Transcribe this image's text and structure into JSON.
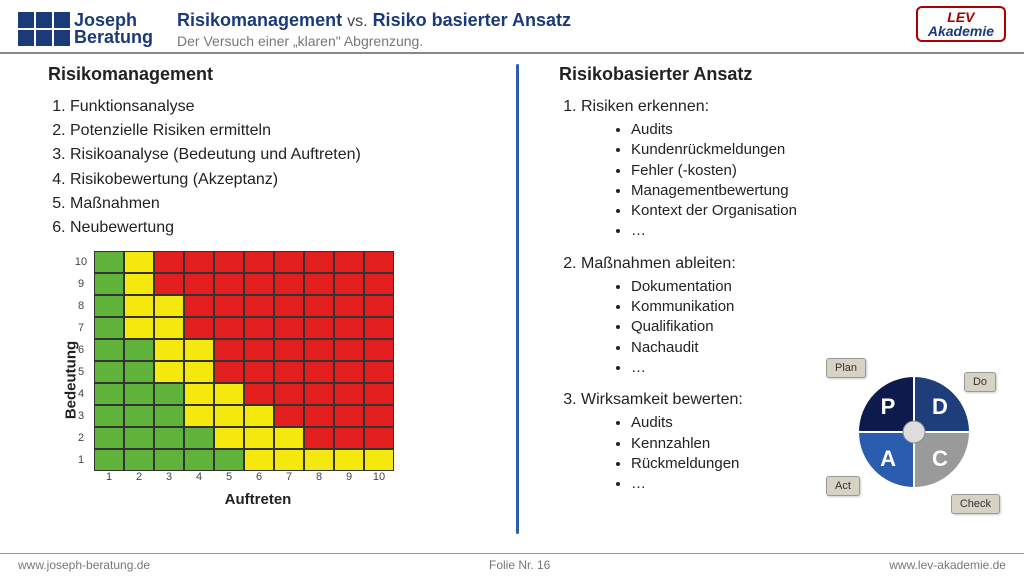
{
  "header": {
    "logo_left_top": "Joseph",
    "logo_left_bottom": "Beratung",
    "title_a": "Risikomanagement",
    "title_vs": "vs.",
    "title_b": "Risiko basierter Ansatz",
    "subtitle": "Der Versuch einer „klaren\" Abgrenzung.",
    "logo_right_top": "LEV",
    "logo_right_bottom": "Akademie"
  },
  "left": {
    "title": "Risikomanagement",
    "items": [
      "Funktionsanalyse",
      "Potenzielle Risiken ermitteln",
      "Risikoanalyse (Bedeutung und Auftreten)",
      "Risikobewertung (Akzeptanz)",
      "Maßnahmen",
      "Neubewertung"
    ]
  },
  "right": {
    "title": "Risikobasierter Ansatz",
    "sections": [
      {
        "title": "Risiken erkennen:",
        "items": [
          "Audits",
          "Kundenrückmeldungen",
          "Fehler (-kosten)",
          "Managementbewertung",
          "Kontext der Organisation",
          "…"
        ]
      },
      {
        "title": "Maßnahmen ableiten:",
        "items": [
          "Dokumentation",
          "Kommunikation",
          "Qualifikation",
          "Nachaudit",
          "…"
        ]
      },
      {
        "title": "Wirksamkeit bewerten:",
        "items": [
          "Audits",
          "Kennzahlen",
          "Rückmeldungen",
          "…"
        ]
      }
    ]
  },
  "matrix": {
    "type": "heatmap",
    "xlabel": "Auftreten",
    "ylabel": "Bedeutung",
    "xticks": [
      "1",
      "2",
      "3",
      "4",
      "5",
      "6",
      "7",
      "8",
      "9",
      "10"
    ],
    "yticks": [
      "10",
      "9",
      "8",
      "7",
      "6",
      "5",
      "4",
      "3",
      "2",
      "1"
    ],
    "colors": {
      "g": "#5fb33a",
      "y": "#f4e80e",
      "r": "#e21e1e"
    },
    "border_color": "#333333",
    "grid": [
      [
        "g",
        "y",
        "r",
        "r",
        "r",
        "r",
        "r",
        "r",
        "r",
        "r"
      ],
      [
        "g",
        "y",
        "r",
        "r",
        "r",
        "r",
        "r",
        "r",
        "r",
        "r"
      ],
      [
        "g",
        "y",
        "y",
        "r",
        "r",
        "r",
        "r",
        "r",
        "r",
        "r"
      ],
      [
        "g",
        "y",
        "y",
        "r",
        "r",
        "r",
        "r",
        "r",
        "r",
        "r"
      ],
      [
        "g",
        "g",
        "y",
        "y",
        "r",
        "r",
        "r",
        "r",
        "r",
        "r"
      ],
      [
        "g",
        "g",
        "y",
        "y",
        "r",
        "r",
        "r",
        "r",
        "r",
        "r"
      ],
      [
        "g",
        "g",
        "g",
        "y",
        "y",
        "r",
        "r",
        "r",
        "r",
        "r"
      ],
      [
        "g",
        "g",
        "g",
        "y",
        "y",
        "y",
        "r",
        "r",
        "r",
        "r"
      ],
      [
        "g",
        "g",
        "g",
        "g",
        "y",
        "y",
        "y",
        "r",
        "r",
        "r"
      ],
      [
        "g",
        "g",
        "g",
        "g",
        "g",
        "y",
        "y",
        "y",
        "y",
        "y"
      ]
    ]
  },
  "pdca": {
    "labels": {
      "plan": "Plan",
      "do": "Do",
      "check": "Check",
      "act": "Act"
    },
    "letters": {
      "p": "P",
      "d": "D",
      "c": "C",
      "a": "A"
    },
    "colors": {
      "p": "#0d1b4c",
      "d": "#1d3e7a",
      "c": "#9a9a9a",
      "a": "#2a5db0",
      "tab_bg": "#d7d2c4",
      "letter": "#ffffff"
    }
  },
  "footer": {
    "left": "www.joseph-beratung.de",
    "center": "Folie Nr. 16",
    "right": "www.lev-akademie.de"
  }
}
